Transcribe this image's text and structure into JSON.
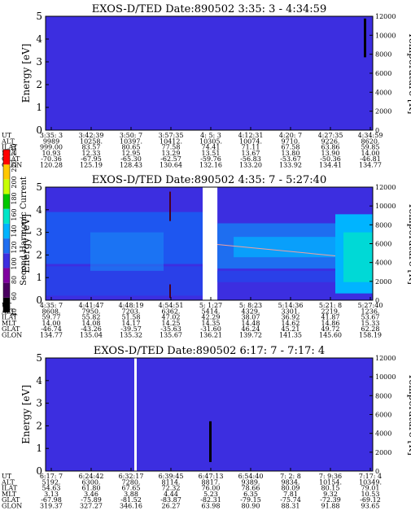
{
  "chart_data": [
    {
      "type": "heatmap",
      "title": "EXOS-D/TED   Date:890502   3:35: 3 - 4:34:59",
      "ylabel": "Energy [eV]",
      "y2label": "Temperature [K]",
      "ylim": [
        0,
        5
      ],
      "y2lim": [
        0,
        12000
      ],
      "yticks": [
        "0",
        "1",
        "2",
        "3",
        "4",
        "5"
      ],
      "y2ticks": [
        "0",
        "2000",
        "4000",
        "6000",
        "8000",
        "10000",
        "12000"
      ],
      "background_color": "#3c2ee0",
      "features": [
        {
          "kind": "dark-streak",
          "column": "4:34:59",
          "y_from": 3.2,
          "y_to": 4.9
        }
      ],
      "table": {
        "row_labels": [
          "UT",
          "ALT",
          "ILAT",
          "MLT",
          "GLAT",
          "GLON"
        ],
        "columns": [
          [
            "3:35: 3",
            "9989",
            "999.00",
            "10.93",
            "-70.36",
            "120.28"
          ],
          [
            "3:42:39",
            "10258.",
            "83.57",
            "12.33",
            "-67.95",
            "125.19"
          ],
          [
            "3:50: 7",
            "10397.",
            "80.65",
            "12.95",
            "-65.30",
            "128.43"
          ],
          [
            "3:57:35",
            "10412.",
            "77.58",
            "13.29",
            "-62.57",
            "130.64"
          ],
          [
            "4: 5: 3",
            "10305.",
            "74.41",
            "13.51",
            "-59.76",
            "132.16"
          ],
          [
            "4:12:31",
            "10074.",
            "71.11",
            "13.67",
            "-56.83",
            "133.20"
          ],
          [
            "4:20: 7",
            "9710.",
            "67.58",
            "13.80",
            "-53.67",
            "133.92"
          ],
          [
            "4:27:35",
            "9226.",
            "63.86",
            "13.90",
            "-50.36",
            "134.41"
          ],
          [
            "4:34:59",
            "8620.",
            "59.85",
            "14.00",
            "-46.81",
            "134.77"
          ]
        ]
      }
    },
    {
      "type": "heatmap",
      "title": "EXOS-D/TED   Date:890502   4:35: 7 - 5:27:40",
      "ylabel": "Energy [eV]",
      "y2label": "Temperature [K]",
      "ylim": [
        0,
        5
      ],
      "y2lim": [
        0,
        12000
      ],
      "yticks": [
        "0",
        "1",
        "2",
        "3",
        "4",
        "5"
      ],
      "y2ticks": [
        "0",
        "2000",
        "4000",
        "6000",
        "8000",
        "10000",
        "12000"
      ],
      "colorbar": {
        "label": "Second Harmonic Current",
        "ticks": [
          "40",
          "60",
          "80",
          "100",
          "120",
          "140",
          "160",
          "180",
          "200",
          "220",
          "240"
        ],
        "colors": [
          "#000000",
          "#4a0060",
          "#8000a0",
          "#3c2ee0",
          "#1e6ef0",
          "#00b4ff",
          "#00e6c8",
          "#00c800",
          "#c8ff00",
          "#ffc800",
          "#ff0000"
        ]
      },
      "data_gap": {
        "from": "5: 1:27",
        "to_fraction": 0.1
      },
      "features": [
        {
          "kind": "temperature-line",
          "y": 5400
        },
        {
          "kind": "dark-streak",
          "column": "4:54:51",
          "y_from": 3.5,
          "y_to": 4.8
        },
        {
          "kind": "dark-streak",
          "column": "4:54:51",
          "y_from": 0.1,
          "y_to": 0.7
        },
        {
          "kind": "bright-band",
          "columns": [
            "5:21: 8",
            "5:27:40"
          ],
          "y_from": 0.3,
          "y_to": 3.8
        }
      ],
      "table": {
        "row_labels": [
          "UT",
          "ALT",
          "ILAT",
          "MLT",
          "GLAT",
          "GLON"
        ],
        "columns": [
          [
            "4:35: 7",
            "8608.",
            "59.77",
            "14.00",
            "-46.74",
            "134.77"
          ],
          [
            "4:41:47",
            "7950.",
            "55.82",
            "14.08",
            "-43.26",
            "135.04"
          ],
          [
            "4:48:19",
            "7203.",
            "51.58",
            "14.17",
            "-39.57",
            "135.32"
          ],
          [
            "4:54:51",
            "6362.",
            "47.02",
            "14.25",
            "-35.63",
            "135.67"
          ],
          [
            "5: 1:27",
            "5414.",
            "42.29",
            "14.35",
            "-31.60",
            "136.21"
          ],
          [
            "5: 8:23",
            "4329.",
            "38.07",
            "14.48",
            "46.24",
            "139.72"
          ],
          [
            "5:14:36",
            "3301.",
            "36.92",
            "14.62",
            "45.21",
            "141.35"
          ],
          [
            "5:21: 8",
            "2219.",
            "41.87",
            "14.86",
            "49.72",
            "145.60"
          ],
          [
            "5:27:40",
            "1236.",
            "53.67",
            "15.33",
            "62.28",
            "158.19"
          ]
        ]
      }
    },
    {
      "type": "heatmap",
      "title": "EXOS-D/TED   Date:890502   6:17: 7 - 7:17: 4",
      "ylabel": "Energy [eV]",
      "y2label": "Temperature [K]",
      "ylim": [
        0,
        5
      ],
      "y2lim": [
        0,
        12000
      ],
      "yticks": [
        "0",
        "1",
        "2",
        "3",
        "4",
        "5"
      ],
      "y2ticks": [
        "0",
        "2000",
        "4000",
        "6000",
        "8000",
        "10000",
        "12000"
      ],
      "background_color": "#3c2ee0",
      "features": [
        {
          "kind": "white-gap",
          "column": "6:32:17"
        },
        {
          "kind": "dark-streak",
          "column": "6:47:13",
          "y_from": 0.4,
          "y_to": 2.2
        }
      ],
      "table": {
        "row_labels": [
          "UT",
          "ALT",
          "ILAT",
          "MLT",
          "GLAT",
          "GLON"
        ],
        "columns": [
          [
            "6:17: 7",
            "5192.",
            "54.63",
            "3.13",
            "-67.98",
            "319.37"
          ],
          [
            "6:24:42",
            "6300.",
            "61.80",
            "3.46",
            "-75.89",
            "327.27"
          ],
          [
            "6:32:17",
            "7280.",
            "67.65",
            "3.88",
            "-81.52",
            "346.16"
          ],
          [
            "6:39:45",
            "8114.",
            "72.32",
            "4.44",
            "-83.87",
            "26.27"
          ],
          [
            "6:47:13",
            "8817.",
            "76.00",
            "5.23",
            "-82.31",
            "63.98"
          ],
          [
            "6:54:40",
            "9389.",
            "78.66",
            "6.35",
            "-79.15",
            "80.90"
          ],
          [
            "7: 2: 8",
            "9834.",
            "80.09",
            "7.81",
            "-75.74",
            "88.31"
          ],
          [
            "7: 9:36",
            "10154.",
            "80.15",
            "9.32",
            "-72.39",
            "91.88"
          ],
          [
            "7:17: 4",
            "10349.",
            "79.01",
            "10.53",
            "-69.12",
            "93.65"
          ]
        ]
      }
    }
  ]
}
